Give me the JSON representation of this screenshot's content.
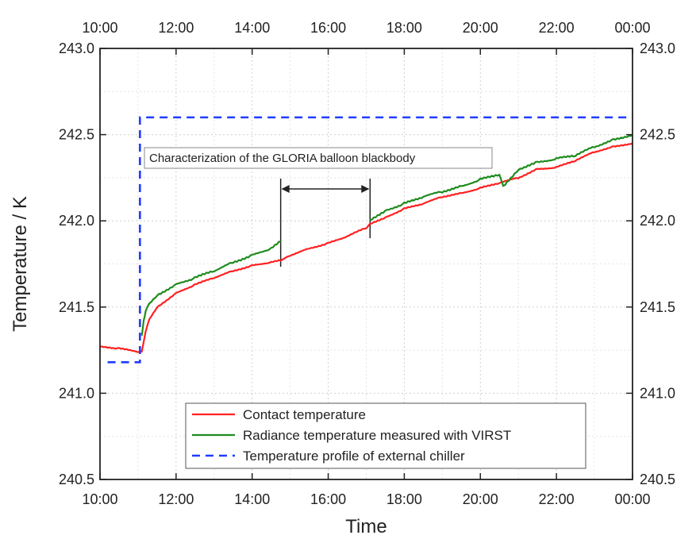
{
  "chart_data": {
    "type": "line",
    "title": "",
    "xlabel": "Time",
    "ylabel": "Temperature / K",
    "x_unit": "hours of day",
    "xlim": [
      10,
      24
    ],
    "ylim": [
      240.5,
      243.0
    ],
    "x_ticks": [
      10,
      12,
      14,
      16,
      18,
      20,
      22,
      24
    ],
    "x_tick_labels": [
      "10:00",
      "12:00",
      "14:00",
      "16:00",
      "18:00",
      "20:00",
      "22:00",
      "00:00"
    ],
    "y_ticks": [
      240.5,
      241.0,
      241.5,
      242.0,
      242.5,
      243.0
    ],
    "y_tick_labels": [
      "240.5",
      "241.0",
      "241.5",
      "242.0",
      "242.5",
      "243.0"
    ],
    "grid": true,
    "legend_position": "bottom-center",
    "annotation": {
      "text": "Characterization of the GLORIA balloon blackbody",
      "gap_start": 14.75,
      "gap_end": 17.1
    },
    "series": [
      {
        "name": "Contact temperature",
        "color": "#ff2020",
        "style": "solid",
        "x": [
          10.0,
          10.5,
          11.0,
          11.1,
          11.2,
          11.3,
          11.5,
          12.0,
          12.5,
          13.0,
          13.5,
          14.0,
          14.5,
          14.75,
          15.0,
          15.5,
          16.0,
          16.5,
          17.0,
          17.1,
          17.5,
          18.0,
          18.5,
          19.0,
          19.5,
          20.0,
          20.5,
          21.0,
          21.5,
          22.0,
          22.5,
          23.0,
          23.5,
          24.0
        ],
        "y": [
          241.27,
          241.26,
          241.24,
          241.24,
          241.36,
          241.43,
          241.5,
          241.58,
          241.63,
          241.67,
          241.71,
          241.74,
          241.76,
          241.77,
          241.8,
          241.84,
          241.87,
          241.91,
          241.96,
          241.98,
          242.02,
          242.07,
          242.1,
          242.14,
          242.16,
          242.19,
          242.22,
          242.25,
          242.3,
          242.31,
          242.35,
          242.4,
          242.43,
          242.45
        ]
      },
      {
        "name": "Radiance temperature measured with VIRST",
        "color": "#1e8c1e",
        "style": "solid",
        "segments": [
          {
            "x": [
              11.1,
              11.15,
              11.2,
              11.3,
              11.5,
              12.0,
              12.5,
              13.0,
              13.5,
              14.0,
              14.5,
              14.75
            ],
            "y": [
              241.33,
              241.42,
              241.48,
              241.52,
              241.57,
              241.63,
              241.67,
              241.71,
              241.76,
              241.8,
              241.84,
              241.88
            ]
          },
          {
            "x": [
              17.1,
              17.5,
              18.0,
              18.5,
              19.0,
              19.5,
              20.0,
              20.5,
              20.6,
              21.0,
              21.5,
              22.0,
              22.5,
              23.0,
              23.5,
              24.0
            ],
            "y": [
              242.0,
              242.06,
              242.1,
              242.14,
              242.17,
              242.2,
              242.24,
              242.27,
              242.2,
              242.3,
              242.34,
              242.36,
              242.38,
              242.43,
              242.47,
              242.5
            ]
          }
        ]
      },
      {
        "name": "Temperature profile of external chiller",
        "color": "#1f3cff",
        "style": "dashed",
        "x": [
          10.2,
          11.05,
          11.05,
          24.0
        ],
        "y": [
          241.18,
          241.18,
          242.6,
          242.6
        ]
      }
    ]
  }
}
